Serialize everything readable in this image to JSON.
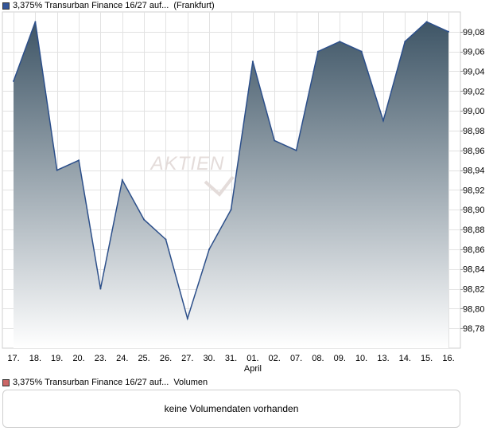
{
  "price_legend": {
    "label": "3,375% Transurban Finance 16/27 auf...",
    "market": "(Frankfurt)",
    "swatch_color": "#335599"
  },
  "volume_legend": {
    "label": "3,375% Transurban Finance 16/27 auf...",
    "series": "Volumen",
    "swatch_color": "#cc6666"
  },
  "volume_message": "keine Volumendaten vorhanden",
  "watermark": "AKTIEN",
  "chart_data": {
    "type": "area",
    "categories": [
      "17.",
      "18.",
      "19.",
      "20.",
      "23.",
      "24.",
      "25.",
      "26.",
      "27.",
      "30.",
      "31.",
      "01.",
      "02.",
      "07.",
      "08.",
      "09.",
      "10.",
      "13.",
      "14.",
      "15.",
      "16."
    ],
    "month_label": {
      "text": "April",
      "at_category": "01."
    },
    "values": [
      99.03,
      99.09,
      98.94,
      98.95,
      98.82,
      98.93,
      98.89,
      98.87,
      98.79,
      98.86,
      98.9,
      99.05,
      98.97,
      98.96,
      99.06,
      99.07,
      99.06,
      98.99,
      99.07,
      99.09,
      99.08
    ],
    "y_ticks": [
      "98,78",
      "98,80",
      "98,82",
      "98,84",
      "98,86",
      "98,88",
      "98,90",
      "98,92",
      "98,94",
      "98,96",
      "98,98",
      "99,00",
      "99,02",
      "99,04",
      "99,06",
      "99,08"
    ],
    "y_tick_values": [
      98.78,
      98.8,
      98.82,
      98.84,
      98.86,
      98.88,
      98.9,
      98.92,
      98.94,
      98.96,
      98.98,
      99.0,
      99.02,
      99.04,
      99.06,
      99.08
    ],
    "ylim": [
      98.76,
      99.1
    ],
    "grid": true,
    "y_axis_side": "right",
    "line_color": "#2c4f8a",
    "fill_top_color": "#3e5566",
    "fill_bottom_color": "#ffffff"
  }
}
